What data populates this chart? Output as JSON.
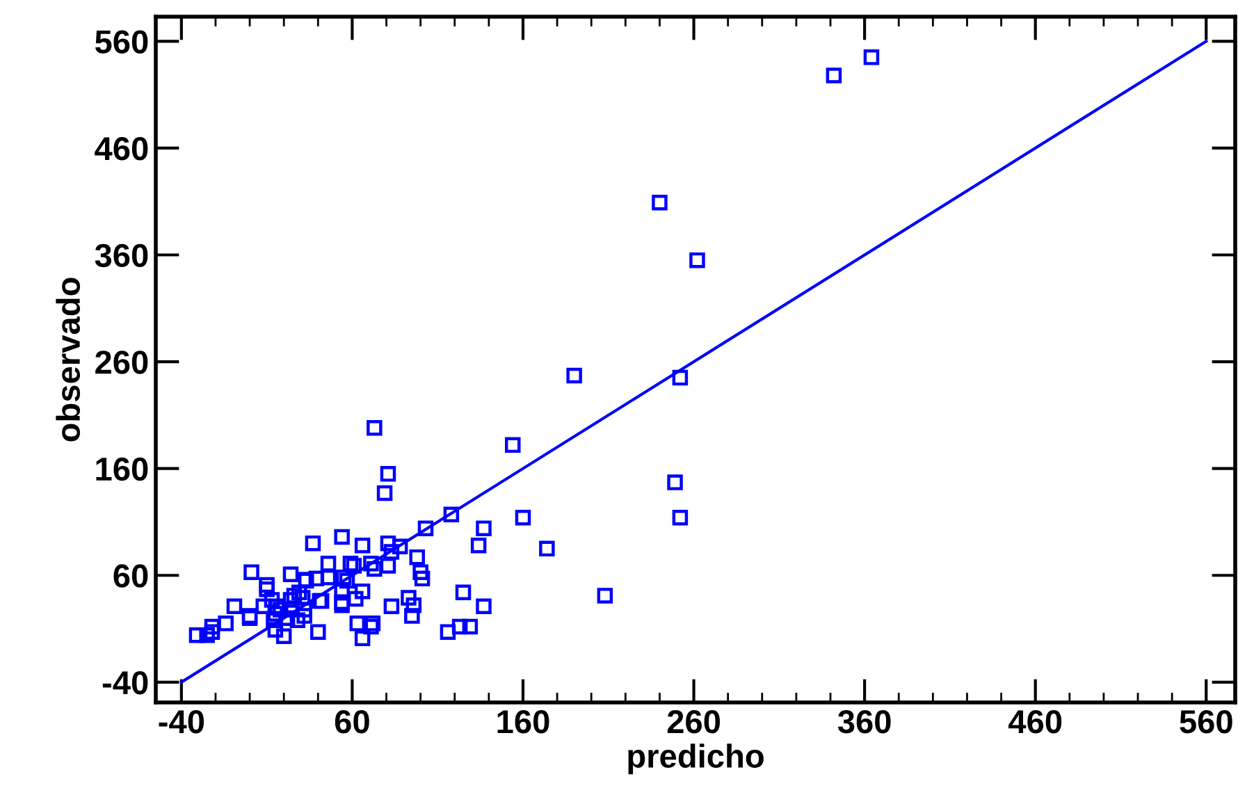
{
  "chart_data": {
    "type": "scatter",
    "xlabel": "predicho",
    "ylabel": "observado",
    "xlim": [
      -55,
      577
    ],
    "ylim": [
      -59,
      583
    ],
    "xticks": [
      -40,
      60,
      160,
      260,
      360,
      460,
      560
    ],
    "yticks": [
      -40,
      60,
      160,
      260,
      360,
      460,
      560
    ],
    "series": [
      {
        "marker": "square",
        "color": "#0000ff",
        "x": [
          73,
          154,
          81,
          79,
          118,
          160,
          103,
          137,
          37,
          54,
          66,
          81,
          88,
          134,
          174,
          1,
          24,
          46,
          59,
          61,
          71,
          73,
          81,
          83,
          98,
          100,
          101,
          10,
          10,
          33,
          39,
          46,
          55,
          57,
          54,
          66,
          62,
          41,
          54,
          54,
          93,
          96,
          95,
          125,
          137,
          83,
          -9,
          8,
          0,
          0,
          -14,
          -22,
          -31,
          -25,
          -22,
          63,
          66,
          71,
          72,
          40,
          116,
          123,
          129,
          13,
          16,
          15,
          14,
          15,
          20,
          18,
          24,
          26,
          29,
          31,
          32,
          28,
          22,
          24,
          32,
          33,
          42,
          364,
          342,
          240,
          262,
          190,
          252,
          249,
          252,
          208
        ],
        "values": [
          198,
          182,
          155,
          137,
          117,
          114,
          104,
          104,
          90,
          96,
          88,
          90,
          87,
          88,
          85,
          63,
          61,
          71,
          71,
          69,
          71,
          66,
          69,
          82,
          77,
          63,
          57,
          51,
          47,
          56,
          57,
          58,
          58,
          55,
          45,
          45,
          38,
          36,
          35,
          32,
          39,
          32,
          22,
          44,
          31,
          31,
          31,
          31,
          22,
          20,
          15,
          12,
          4,
          4,
          7,
          15,
          1,
          12,
          15,
          7,
          7,
          12,
          12,
          37,
          31,
          24,
          18,
          9,
          3,
          28,
          37,
          41,
          44,
          39,
          28,
          18,
          20,
          28,
          22,
          55,
          36,
          545,
          528,
          409,
          355,
          247,
          245,
          147,
          114,
          41
        ]
      },
      {
        "type": "line",
        "color": "#0000ff",
        "x": [
          -40,
          560
        ],
        "values": [
          -40,
          560
        ]
      }
    ]
  }
}
